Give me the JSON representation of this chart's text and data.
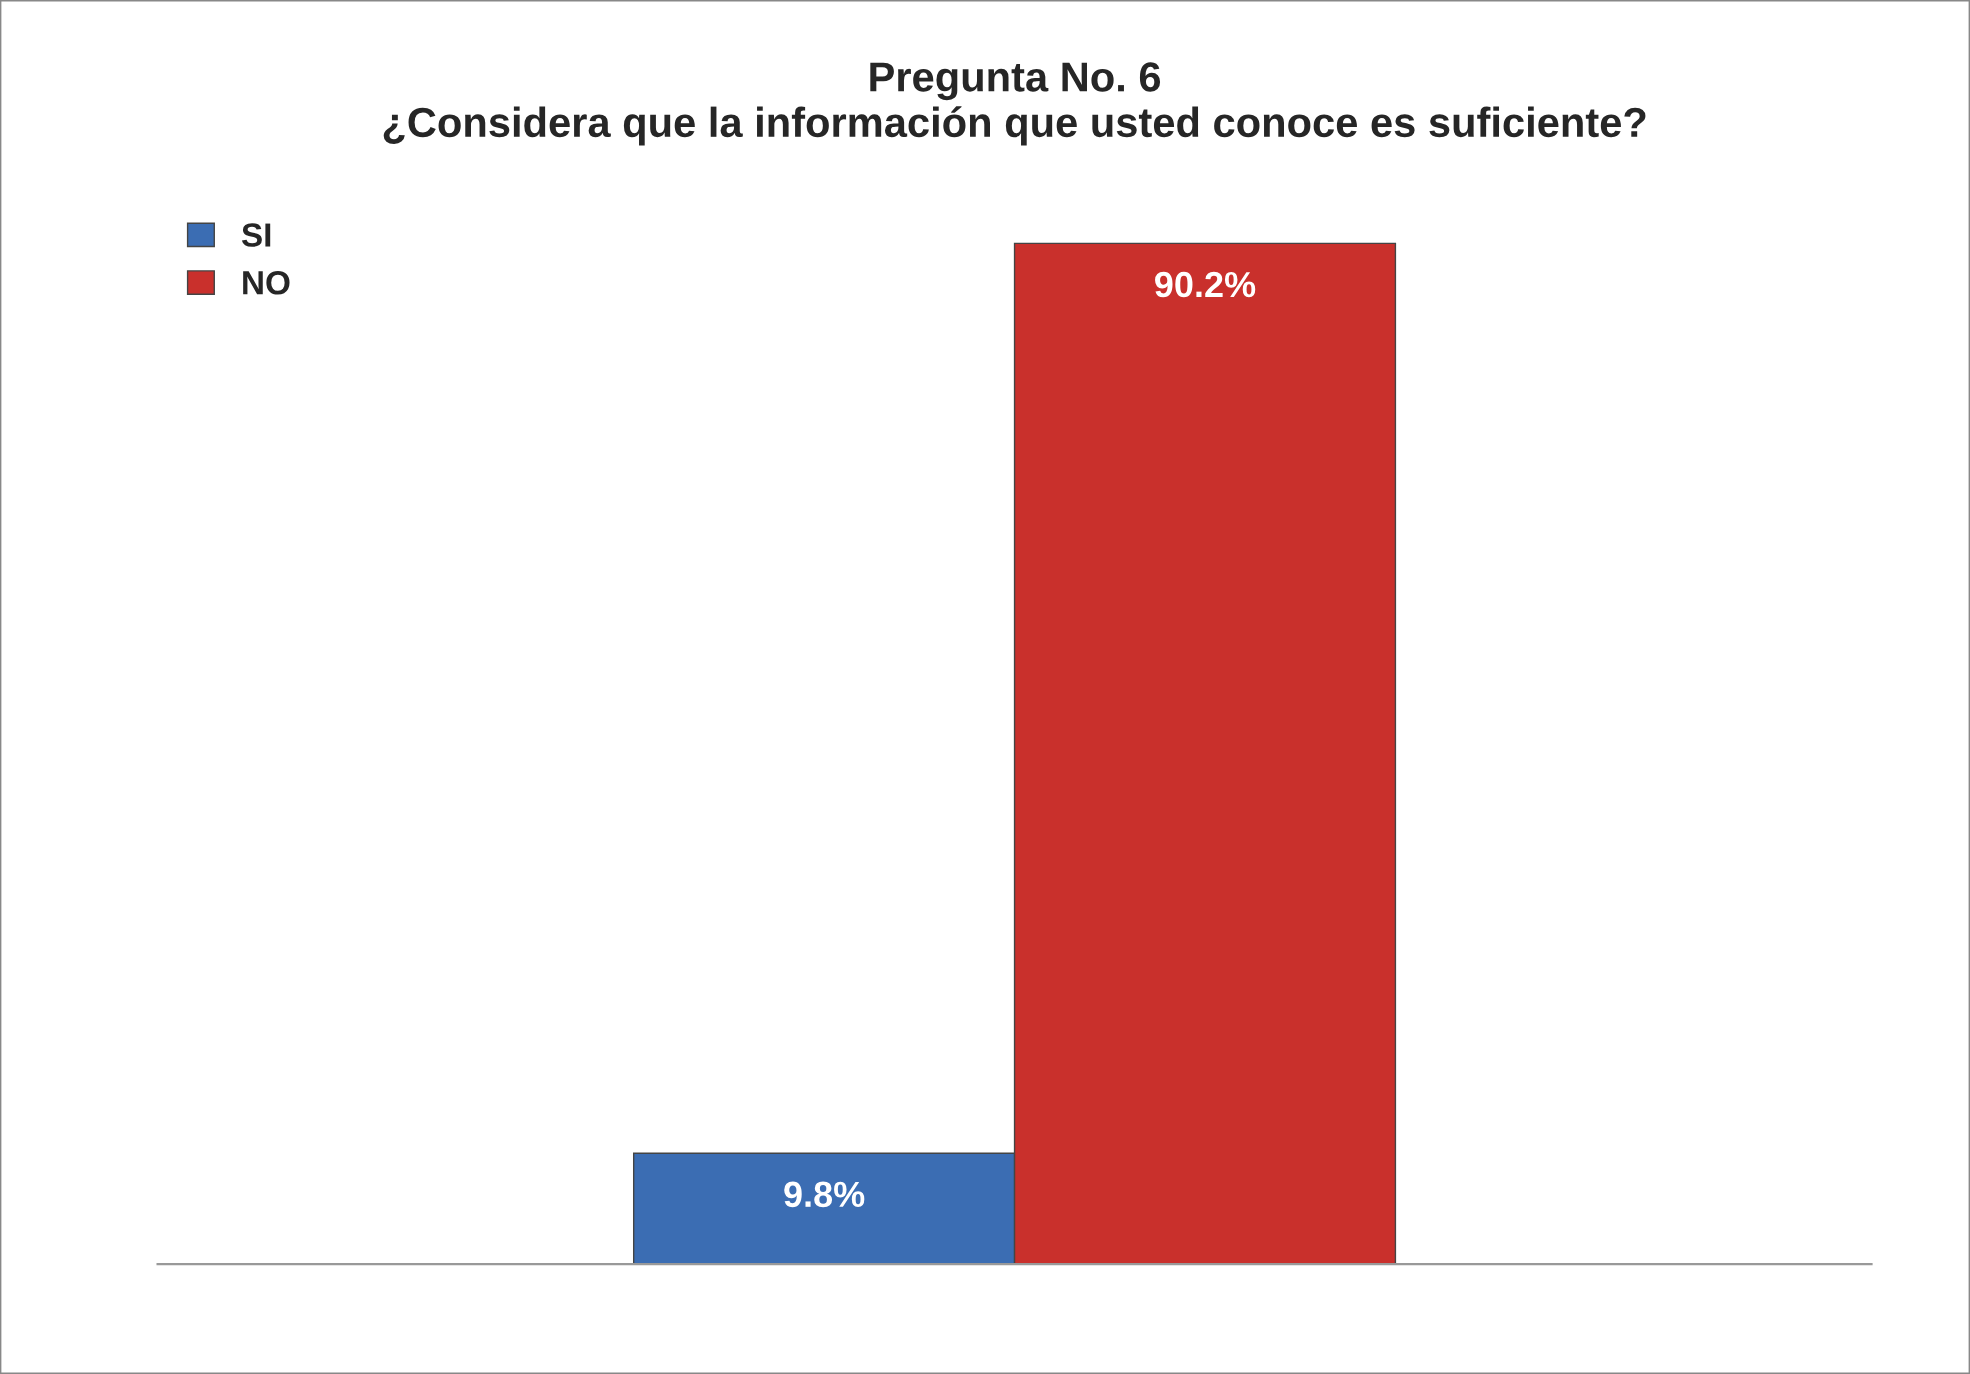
{
  "chart_data": {
    "type": "bar",
    "title": "Pregunta No. 6\n¿Considera que la información que usted conoce es suficiente?",
    "categories": [
      null
    ],
    "series": [
      {
        "name": "SI",
        "color": "#3b6db3",
        "values": [
          9.8
        ],
        "value_labels": [
          "9.8%"
        ]
      },
      {
        "name": "NO",
        "color": "#c9302c",
        "values": [
          90.2
        ],
        "value_labels": [
          "90.2%"
        ]
      }
    ],
    "legend": "top left",
    "grid": false,
    "tick_labels": false
  }
}
